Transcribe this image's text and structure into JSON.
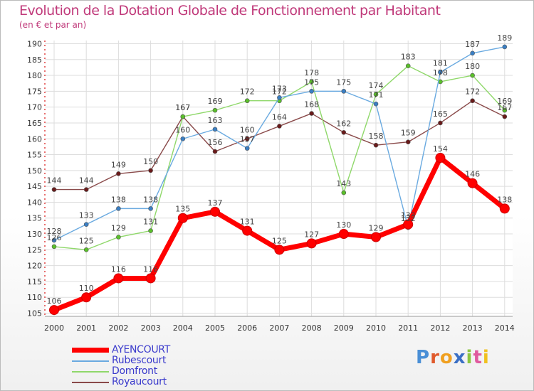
{
  "chart_data": {
    "type": "line",
    "title": "Evolution de la Dotation Globale de Fonctionnement par Habitant",
    "subtitle": "(en € et par an)",
    "x": [
      "2000",
      "2001",
      "2002",
      "2003",
      "2004",
      "2005",
      "2006",
      "2007",
      "2008",
      "2009",
      "2010",
      "2011",
      "2012",
      "2013",
      "2014"
    ],
    "yticks": [
      "105",
      "110",
      "115",
      "120",
      "125",
      "130",
      "135",
      "140",
      "145",
      "150",
      "155",
      "160",
      "165",
      "170",
      "175",
      "180",
      "185",
      "190"
    ],
    "ylim": [
      104,
      191
    ],
    "grid": true,
    "legend_position": "bottom-left",
    "series": [
      {
        "name": "AYENCOURT",
        "color": "#ff0000",
        "marker_color": "#b00000",
        "values": [
          106,
          110,
          116,
          116,
          135,
          137,
          131,
          125,
          127,
          130,
          129,
          133,
          154,
          146,
          138
        ],
        "labels": [
          "106",
          "110",
          "116",
          "116",
          "135",
          "137",
          "131",
          "125",
          "127",
          "130",
          "129",
          "133",
          "154",
          "146",
          "138"
        ]
      },
      {
        "name": "Rubescourt",
        "color": "#6aaae0",
        "marker_color": "#3a7fc4",
        "values": [
          128,
          133,
          138,
          138,
          160,
          163,
          157,
          173,
          175,
          175,
          171,
          132,
          181,
          187,
          189
        ],
        "labels": [
          "128",
          "133",
          "138",
          "138",
          "160",
          "163",
          "157",
          "173",
          "175",
          "175",
          "171",
          "132",
          "181",
          "187",
          "189"
        ]
      },
      {
        "name": "Domfront",
        "color": "#8fd86a",
        "marker_color": "#5ac02a",
        "values": [
          126,
          125,
          129,
          131,
          167,
          169,
          172,
          172,
          178,
          143,
          174,
          183,
          178,
          180,
          169
        ],
        "labels": [
          "126",
          "125",
          "129",
          "131",
          "167",
          "169",
          "172",
          "172",
          "178",
          "143",
          "174",
          "183",
          "178",
          "180",
          "169"
        ]
      },
      {
        "name": "Royaucourt",
        "color": "#8a4a4a",
        "marker_color": "#6a1a1a",
        "values": [
          144,
          144,
          149,
          150,
          167,
          156,
          160,
          164,
          168,
          162,
          158,
          159,
          165,
          172,
          167
        ],
        "labels": [
          "144",
          "144",
          "149",
          "150",
          "167",
          "156",
          "160",
          "164",
          "168",
          "162",
          "158",
          "159",
          "165",
          "172",
          "167"
        ]
      }
    ]
  },
  "legend": {
    "items": [
      {
        "label": "AYENCOURT",
        "color": "#ff0000"
      },
      {
        "label": "Rubescourt",
        "color": "#6aaae0"
      },
      {
        "label": "Domfront",
        "color": "#8fd86a"
      },
      {
        "label": "Royaucourt",
        "color": "#8a4a4a"
      }
    ]
  },
  "logo": {
    "text": "Proxiti"
  }
}
